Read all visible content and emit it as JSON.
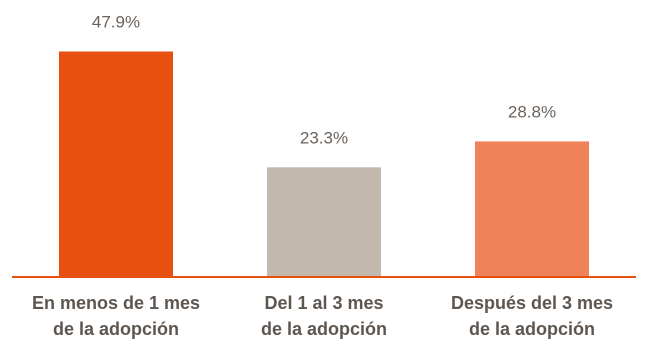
{
  "chart_data": {
    "type": "bar",
    "title": "",
    "xlabel": "",
    "ylabel": "",
    "categories": [
      [
        "En menos de 1 mes",
        "de la adopción"
      ],
      [
        "Del 1 al 3 mes",
        "de la adopción"
      ],
      [
        "Después del 3 mes",
        "de la adopción"
      ]
    ],
    "values": [
      47.9,
      23.3,
      28.8
    ],
    "value_labels": [
      "47.9%",
      "23.3%",
      "28.8%"
    ],
    "ylim": [
      0,
      48
    ],
    "grid": false,
    "legend": "none",
    "colors": [
      "#e8500f",
      "#c2b8ae",
      "#f08259"
    ],
    "axis_color": "#e8500f"
  }
}
